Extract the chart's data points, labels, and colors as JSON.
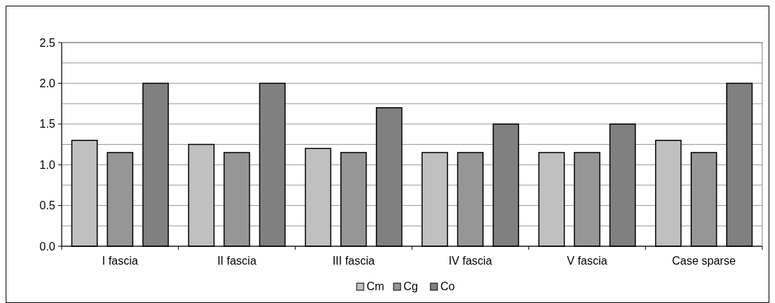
{
  "chart_data": {
    "type": "bar",
    "categories": [
      "I fascia",
      "II fascia",
      "III fascia",
      "IV fascia",
      "V fascia",
      "Case sparse"
    ],
    "series": [
      {
        "name": "Cm",
        "color": "#c0c0c0",
        "values": [
          1.3,
          1.25,
          1.2,
          1.15,
          1.15,
          1.3
        ]
      },
      {
        "name": "Cg",
        "color": "#969696",
        "values": [
          1.15,
          1.15,
          1.15,
          1.15,
          1.15,
          1.15
        ]
      },
      {
        "name": "Co",
        "color": "#808080",
        "values": [
          2.0,
          2.0,
          1.7,
          1.5,
          1.5,
          2.0
        ]
      }
    ],
    "ylim": [
      0,
      2.5
    ],
    "yticks": [
      {
        "value": 0,
        "label": "0.0"
      },
      {
        "value": 0.25,
        "label": null
      },
      {
        "value": 0.5,
        "label": "0.5"
      },
      {
        "value": 0.75,
        "label": null
      },
      {
        "value": 1,
        "label": "1.0"
      },
      {
        "value": 1.25,
        "label": null
      },
      {
        "value": 1.5,
        "label": "1.5"
      },
      {
        "value": 1.75,
        "label": null
      },
      {
        "value": 2,
        "label": "2.0"
      },
      {
        "value": 2.25,
        "label": null
      },
      {
        "value": 2.5,
        "label": "2.5"
      }
    ],
    "grid": true,
    "legend": "bottom"
  }
}
